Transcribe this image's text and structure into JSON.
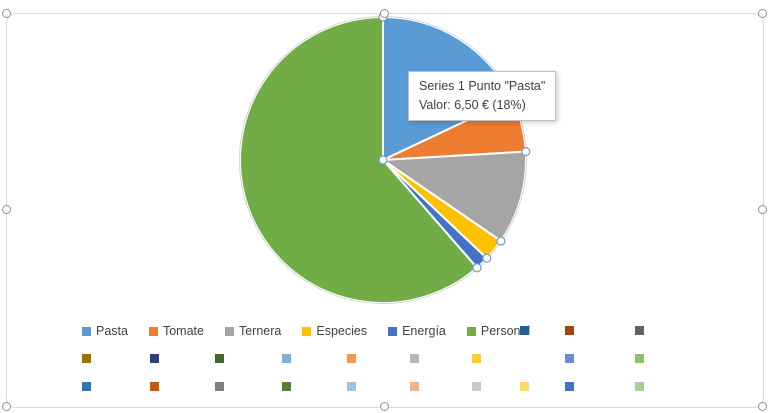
{
  "window": {
    "background": "#ffffff"
  },
  "chart_data": {
    "type": "pie",
    "title": "",
    "series_name": "Series 1",
    "categories": [
      "Pasta",
      "Tomate",
      "Ternera",
      "Especies",
      "Energía",
      "Personal"
    ],
    "values": [
      6.5,
      2.2,
      3.8,
      0.9,
      0.55,
      22.2
    ],
    "percent_estimates": [
      18,
      6,
      10.5,
      2.5,
      1.5,
      61.5
    ],
    "colors": [
      "#5B9BD5",
      "#ED7D31",
      "#A5A5A5",
      "#FFC000",
      "#4472C4",
      "#70AD47"
    ],
    "currency_symbol": "€",
    "legend_position": "bottom",
    "selected_point": "Pasta",
    "selected_point_value_label": "6,50 € (18%)"
  },
  "tooltip": {
    "line1": "Series 1 Punto \"Pasta\"",
    "line2": "Valor: 6,50 € (18%)"
  },
  "legend": {
    "extra_swatch_colors_row1": [
      "#255E91",
      "#9E480E",
      "#636363"
    ],
    "extra_swatch_colors_row2": [
      "#997300",
      "#264478",
      "#43682B",
      "#7CAFDD",
      "#F1975A",
      "#B7B7B7",
      "#FFCD33",
      "#698ED0",
      "#8CC168"
    ],
    "extra_swatch_colors_row3": [
      "#2E75B6",
      "#C55A11",
      "#7F7F7F",
      "#548235",
      "#9DC3E6",
      "#F4B183",
      "#C9C9C9",
      "#FFD966",
      "#4472C4",
      "#A9D18E"
    ]
  }
}
